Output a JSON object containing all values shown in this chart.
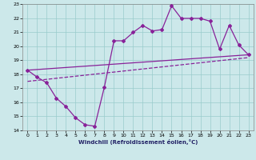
{
  "xlabel": "Windchill (Refroidissement éolien,°C)",
  "bg_color": "#cce8ea",
  "grid_color": "#99cccc",
  "line_color": "#882299",
  "xlim": [
    -0.5,
    23.5
  ],
  "ylim": [
    14,
    23
  ],
  "xticks": [
    0,
    1,
    2,
    3,
    4,
    5,
    6,
    7,
    8,
    9,
    10,
    11,
    12,
    13,
    14,
    15,
    16,
    17,
    18,
    19,
    20,
    21,
    22,
    23
  ],
  "yticks": [
    14,
    15,
    16,
    17,
    18,
    19,
    20,
    21,
    22,
    23
  ],
  "line1_x": [
    0,
    1,
    2,
    3,
    4,
    5,
    6,
    7,
    8,
    9,
    10,
    11,
    12,
    13,
    14,
    15,
    16,
    17,
    18,
    19,
    20,
    21,
    22,
    23
  ],
  "line1_y": [
    18.3,
    17.8,
    17.4,
    16.3,
    15.7,
    14.9,
    14.4,
    14.3,
    17.1,
    20.4,
    20.4,
    21.0,
    21.5,
    21.1,
    21.2,
    22.9,
    22.0,
    22.0,
    22.0,
    21.8,
    19.8,
    21.5,
    20.1,
    19.4
  ],
  "line2_x": [
    0,
    23
  ],
  "line2_y": [
    18.3,
    19.4
  ],
  "line3_x": [
    0,
    23
  ],
  "line3_y": [
    17.5,
    19.2
  ]
}
